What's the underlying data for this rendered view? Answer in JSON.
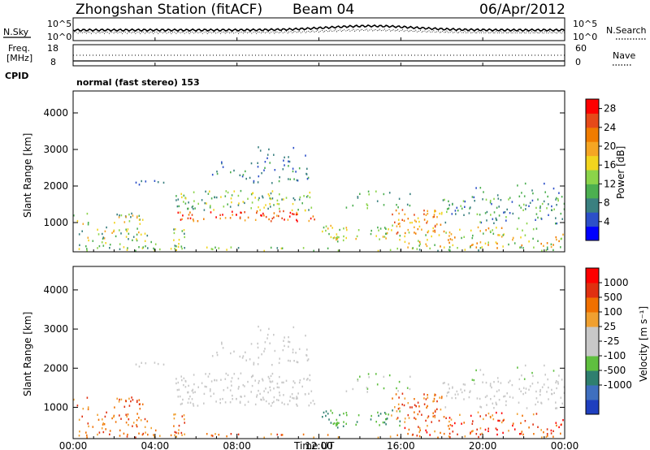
{
  "header": {
    "station": "Zhongshan Station (fitACF)",
    "beam": "Beam 04",
    "date": "06/Apr/2012"
  },
  "noise_panel": {
    "left_label": "N.Sky",
    "left_top": "10^5",
    "left_bottom": "10^0",
    "right_top": "10^5",
    "right_bottom": "10^0",
    "right_label": "N.Search"
  },
  "freq_panel": {
    "left_label_1": "Freq.",
    "left_label_2": "[MHz]",
    "left_top": "18",
    "left_bottom": "8",
    "right_top": "60",
    "right_bottom": "0",
    "right_label": "Nave"
  },
  "cpid": {
    "label": "CPID",
    "mode": "normal (fast stereo) 153"
  },
  "chart_data": [
    {
      "type": "heatmap",
      "ylabel": "Slant Range [km]",
      "xlabel": "",
      "yticks": [
        "1000",
        "2000",
        "3000",
        "4000"
      ],
      "ylim": [
        200,
        4600
      ],
      "xlim": [
        0,
        24
      ],
      "colorbar": {
        "label": "Power [dB]",
        "ticks": [
          "4",
          "8",
          "12",
          "16",
          "20",
          "24",
          "28"
        ],
        "range": [
          0,
          30
        ],
        "colors": [
          "#0000ff",
          "#2c4fc9",
          "#3a8080",
          "#4caf50",
          "#8bd44a",
          "#f2d51e",
          "#f5a623",
          "#f07c00",
          "#e64a19",
          "#ff0000"
        ]
      }
    },
    {
      "type": "heatmap",
      "ylabel": "Slant Range [km]",
      "xlabel": "Time UT",
      "xticks": [
        "00:00",
        "04:00",
        "08:00",
        "12:00",
        "16:00",
        "20:00",
        "00:00"
      ],
      "yticks": [
        "1000",
        "2000",
        "3000",
        "4000"
      ],
      "ylim": [
        200,
        4600
      ],
      "xlim": [
        0,
        24
      ],
      "colorbar": {
        "label": "Velocity [m s⁻¹]",
        "ticks": [
          "1000",
          "500",
          "100",
          "25",
          "-25",
          "-100",
          "-500",
          "-1000"
        ],
        "colors": [
          "#1f3fbf",
          "#3f6fbf",
          "#2f7f6f",
          "#5fbf3f",
          "#c8c8c8",
          "#c8c8c8",
          "#f0a030",
          "#f07000",
          "#e03010",
          "#ff0000"
        ]
      }
    }
  ]
}
